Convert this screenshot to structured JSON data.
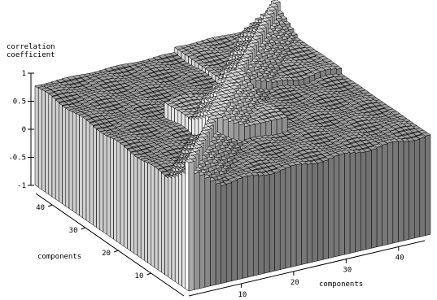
{
  "chart_data": {
    "type": "3d-bar",
    "z_label_line1": "correlation",
    "z_label_line2": "coefficient",
    "x_label": "components",
    "y_label": "components",
    "z_ticks": [
      "1",
      "0.5",
      "0",
      "-0.5",
      "-1"
    ],
    "x_ticks": [
      "10",
      "20",
      "30",
      "40"
    ],
    "y_ticks": [
      "10",
      "20",
      "30",
      "40"
    ],
    "z_range": [
      -1,
      1
    ],
    "x_range": [
      1,
      45
    ],
    "y_range": [
      1,
      45
    ],
    "grid_size": 45,
    "surface_description_values": {
      "diagonal": 1.0,
      "block_1_1_to_12_12": -0.05,
      "block_13_13_to_26_26": 0.45,
      "block_27_27_to_45_45": 0.15,
      "off_diagonal_base": -0.05,
      "near_diagonal_band": 0.3
    },
    "colors": {
      "bar_top": "#6e6e6e",
      "bar_side_light": "#e8e8e8",
      "bar_side_dark": "#3a3a3a",
      "edge": "#000000"
    }
  }
}
